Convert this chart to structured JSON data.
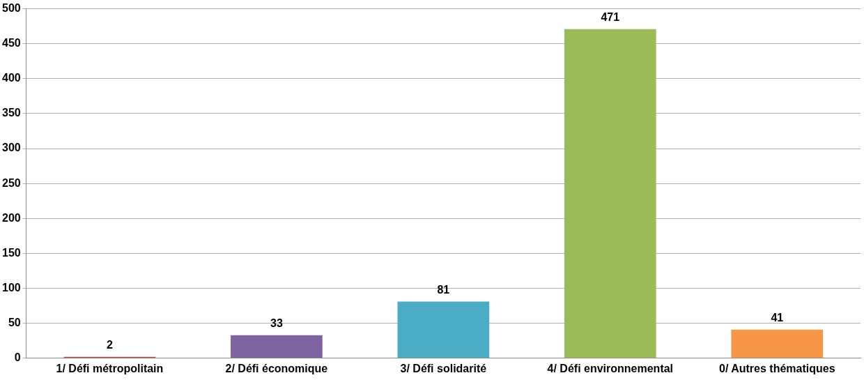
{
  "chart_data": {
    "type": "bar",
    "categories": [
      "1/ Défi métropolitain",
      "2/ Défi économique",
      "3/ Défi solidarité",
      "4/ Défi environnemental",
      "0/ Autres thématiques"
    ],
    "values": [
      2,
      33,
      81,
      471,
      41
    ],
    "colors": [
      "#c0504d",
      "#8064a2",
      "#4bacc6",
      "#9bbb59",
      "#f79646"
    ],
    "ylim": [
      0,
      500
    ],
    "yticks": [
      0,
      50,
      100,
      150,
      200,
      250,
      300,
      350,
      400,
      450,
      500
    ],
    "grid": "y",
    "data_labels": true,
    "legend": false
  }
}
